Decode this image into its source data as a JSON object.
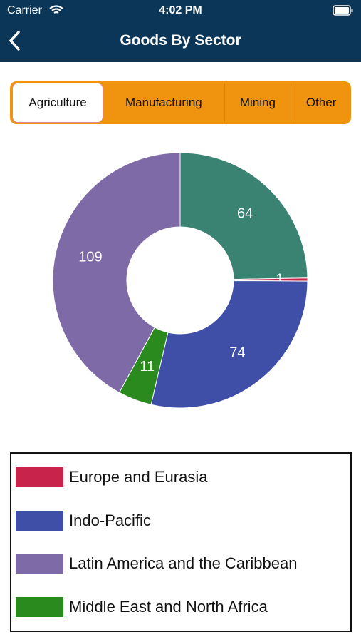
{
  "status_bar": {
    "carrier": "Carrier",
    "time": "4:02 PM"
  },
  "header": {
    "title": "Goods By Sector"
  },
  "tabs": {
    "items": [
      "Agriculture",
      "Manufacturing",
      "Mining",
      "Other"
    ],
    "selected": "Agriculture"
  },
  "chart_data": {
    "type": "donut",
    "categories": [
      null,
      "Europe and Eurasia",
      "Indo-Pacific",
      "Middle East and North Africa",
      "Latin America and the Caribbean"
    ],
    "values": [
      64,
      1,
      74,
      11,
      109
    ],
    "colors": [
      "#3a8272",
      "#c8234a",
      "#3f4fa8",
      "#2a8a1e",
      "#7f6aa8"
    ]
  }
}
